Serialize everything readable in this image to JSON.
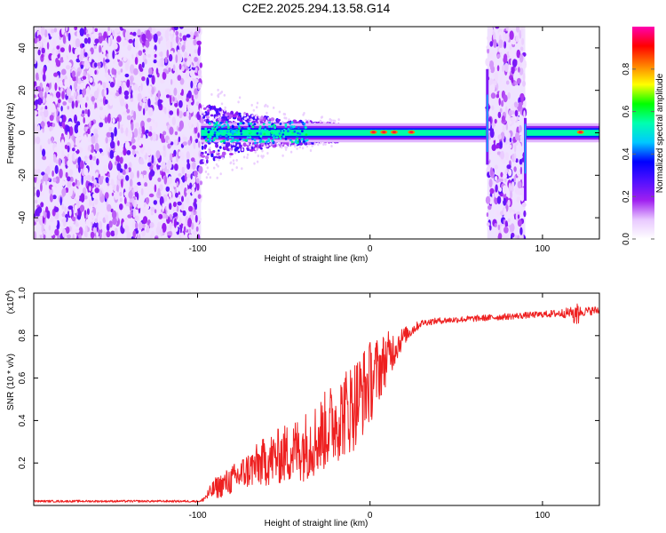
{
  "title": "C2E2.2025.294.13.58.G14",
  "chart_data": [
    {
      "type": "heatmap",
      "title": "C2E2.2025.294.13.58.G14",
      "xlabel": "Height of straight line (km)",
      "ylabel": "Frequency (Hz)",
      "xlim": [
        -195,
        133
      ],
      "ylim": [
        -50,
        50
      ],
      "xticks": [
        -100,
        0,
        100
      ],
      "yticks": [
        -40,
        -20,
        0,
        20,
        40
      ],
      "colorbar_label": "Normalized spectral amplitude",
      "colorbar_range": [
        0.0,
        1.0
      ],
      "colorbar_ticks": [
        0.0,
        0.2,
        0.4,
        0.6,
        0.8
      ],
      "colorbar_colors": [
        "#ffffff",
        "#e8c8ff",
        "#a020f0",
        "#5010ff",
        "#0000ff",
        "#00c8ff",
        "#00ffb0",
        "#00ff00",
        "#ffff00",
        "#ff8000",
        "#ff0000",
        "#ff00b0"
      ],
      "noise_regions": [
        [
          -195,
          -98
        ],
        [
          68,
          90
        ]
      ],
      "signal_band": {
        "center_hz": 0,
        "x_range": [
          -98,
          133
        ]
      },
      "hot_spots_x": [
        2,
        8,
        14,
        24,
        122
      ]
    },
    {
      "type": "line",
      "xlabel": "Height of straight line (km)",
      "ylabel": "SNR (10 * v/v)",
      "y_multiplier": "(x10",
      "y_multiplier_exp": "4",
      "y_multiplier_close": ")",
      "xlim": [
        -195,
        133
      ],
      "ylim": [
        0.0,
        1.0
      ],
      "xticks": [
        -100,
        0,
        100
      ],
      "yticks": [
        0.2,
        0.4,
        0.6,
        0.8,
        1.0
      ],
      "color": "#ee2020",
      "series": [
        {
          "name": "SNR",
          "x": [
            -195,
            -98,
            -90,
            -80,
            -70,
            -60,
            -50,
            -40,
            -30,
            -20,
            -10,
            0,
            10,
            20,
            30,
            40,
            50,
            60,
            70,
            80,
            90,
            100,
            110,
            120,
            125,
            133
          ],
          "y": [
            0.02,
            0.02,
            0.08,
            0.12,
            0.17,
            0.21,
            0.24,
            0.27,
            0.32,
            0.4,
            0.47,
            0.58,
            0.7,
            0.8,
            0.86,
            0.87,
            0.875,
            0.88,
            0.885,
            0.89,
            0.895,
            0.9,
            0.905,
            0.91,
            0.915,
            0.92
          ],
          "spread": [
            0.005,
            0.005,
            0.05,
            0.07,
            0.09,
            0.12,
            0.14,
            0.16,
            0.18,
            0.2,
            0.22,
            0.2,
            0.12,
            0.04,
            0.015,
            0.015,
            0.015,
            0.015,
            0.015,
            0.015,
            0.015,
            0.015,
            0.02,
            0.03,
            0.02,
            0.02
          ]
        }
      ]
    }
  ]
}
